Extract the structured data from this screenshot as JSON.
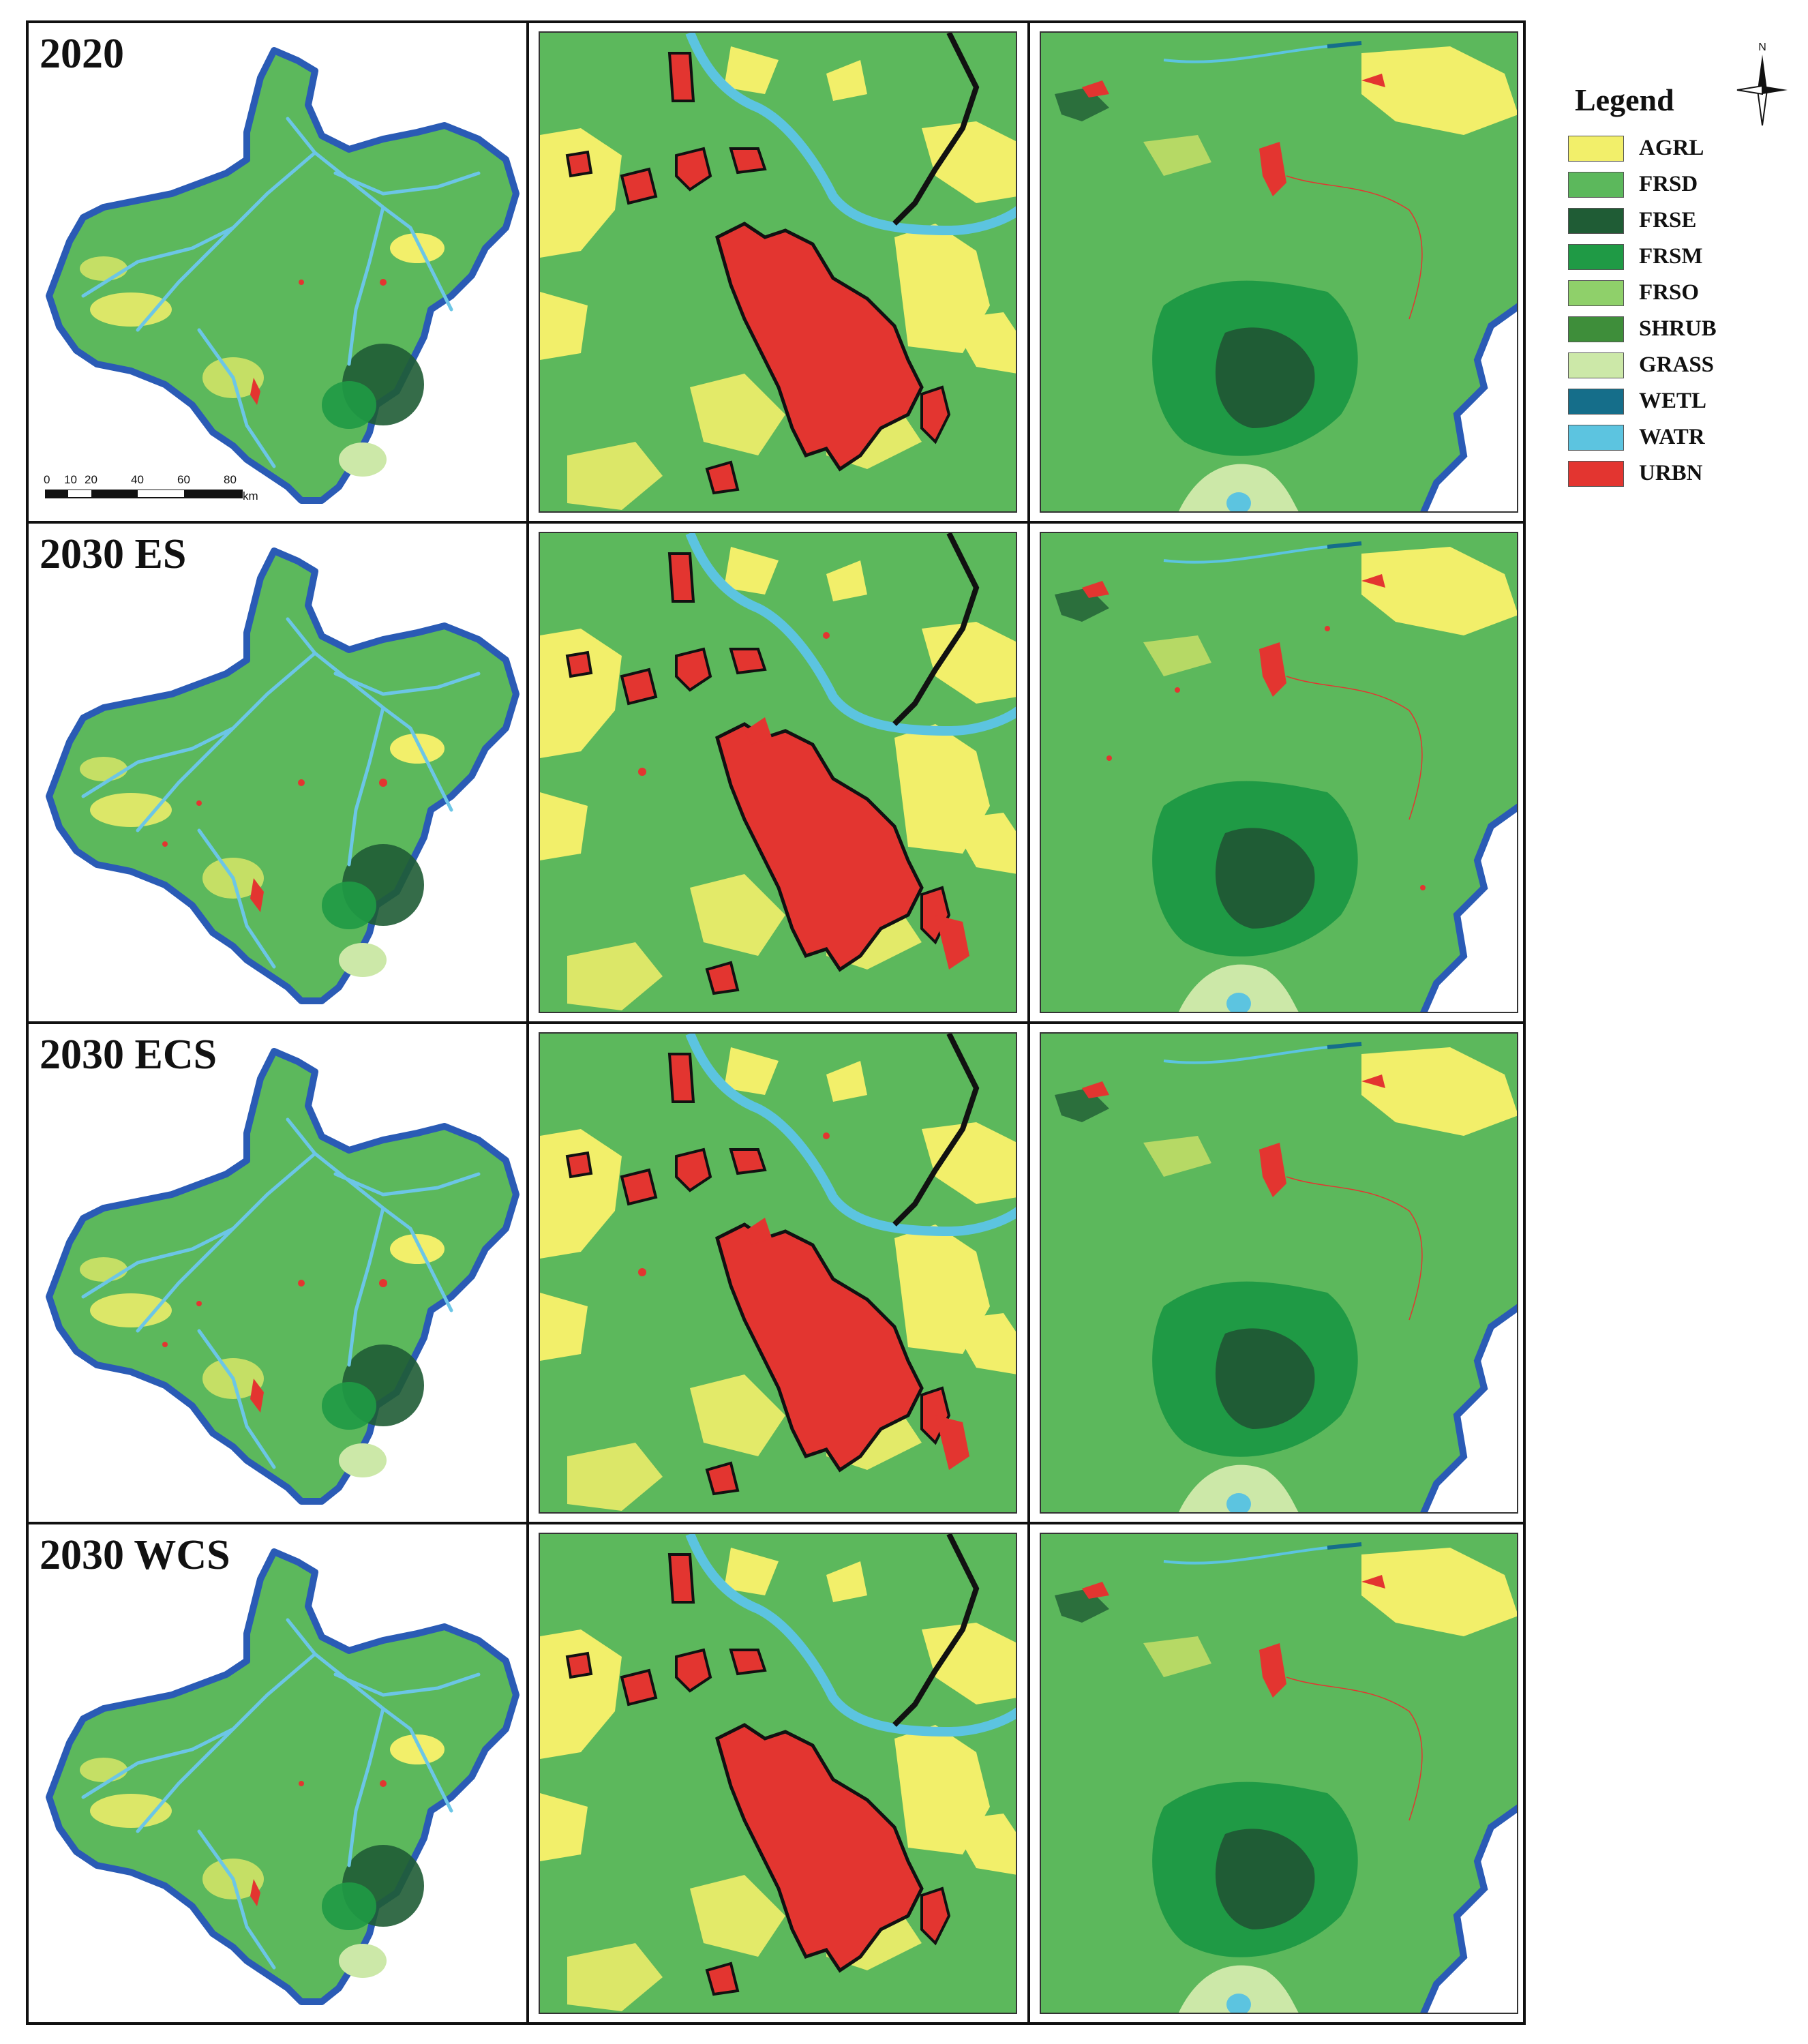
{
  "rows": [
    {
      "label": "2020"
    },
    {
      "label": "2030 ES"
    },
    {
      "label": "2030 ECS"
    },
    {
      "label": "2030 WCS"
    }
  ],
  "legend": {
    "title": "Legend",
    "items": [
      {
        "code": "AGRL",
        "color": "#f2ef6a"
      },
      {
        "code": "FRSD",
        "color": "#5cb85c"
      },
      {
        "code": "FRSE",
        "color": "#1f5c35"
      },
      {
        "code": "FRSM",
        "color": "#1f9a45"
      },
      {
        "code": "FRSO",
        "color": "#8fd06a"
      },
      {
        "code": "SHRUB",
        "color": "#3e8e3a"
      },
      {
        "code": "GRASS",
        "color": "#cce8a8"
      },
      {
        "code": "WETL",
        "color": "#156e8a"
      },
      {
        "code": "WATR",
        "color": "#5cc4e0"
      },
      {
        "code": "URBN",
        "color": "#e33530"
      }
    ]
  },
  "north_arrow": {
    "label": "N"
  },
  "scale_bar": {
    "ticks": [
      "0",
      "10",
      "20",
      "40",
      "60",
      "80"
    ],
    "unit": "km"
  },
  "colors": {
    "boundary": "#2a5bb5",
    "river": "#6cc6e6",
    "road": "#111111",
    "urban": "#e33530",
    "agri": "#f2ef6a",
    "forest": "#5cb85c",
    "dark_forest": "#1f5c35"
  }
}
